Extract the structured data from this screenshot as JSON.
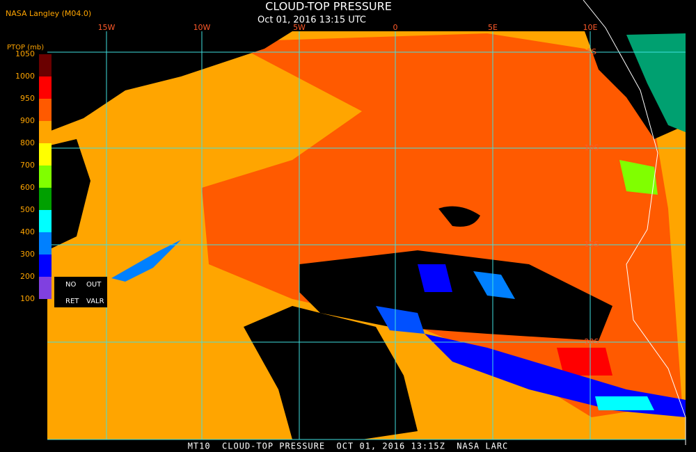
{
  "header": {
    "source": "NASA Langley (M04.0)",
    "title": "CLOUD-TOP PRESSURE",
    "datetime": "Oct 01, 2016 13:15 UTC"
  },
  "legend": {
    "title": "PTOP (mb)",
    "labels": [
      1050,
      1000,
      950,
      900,
      800,
      700,
      600,
      500,
      400,
      300,
      200,
      100
    ],
    "colors": [
      "#6a0000",
      "#ff0000",
      "#ff5a00",
      "#ffa500",
      "#ffff00",
      "#80ff00",
      "#00a000",
      "#00ffff",
      "#0080ff",
      "#0000ff",
      "#8040e0"
    ],
    "no_ret": [
      "NO",
      "RET"
    ],
    "out_valr": [
      "OUT",
      "VALR"
    ]
  },
  "grid": {
    "lon_labels": [
      "15W",
      "10W",
      "5W",
      "0",
      "5E",
      "10E"
    ],
    "lat_labels": [
      "5S",
      "10S",
      "15S",
      "20S"
    ]
  },
  "footer": "MT10  CLOUD-TOP PRESSURE  OCT 01, 2016 13:15Z  NASA LARC"
}
